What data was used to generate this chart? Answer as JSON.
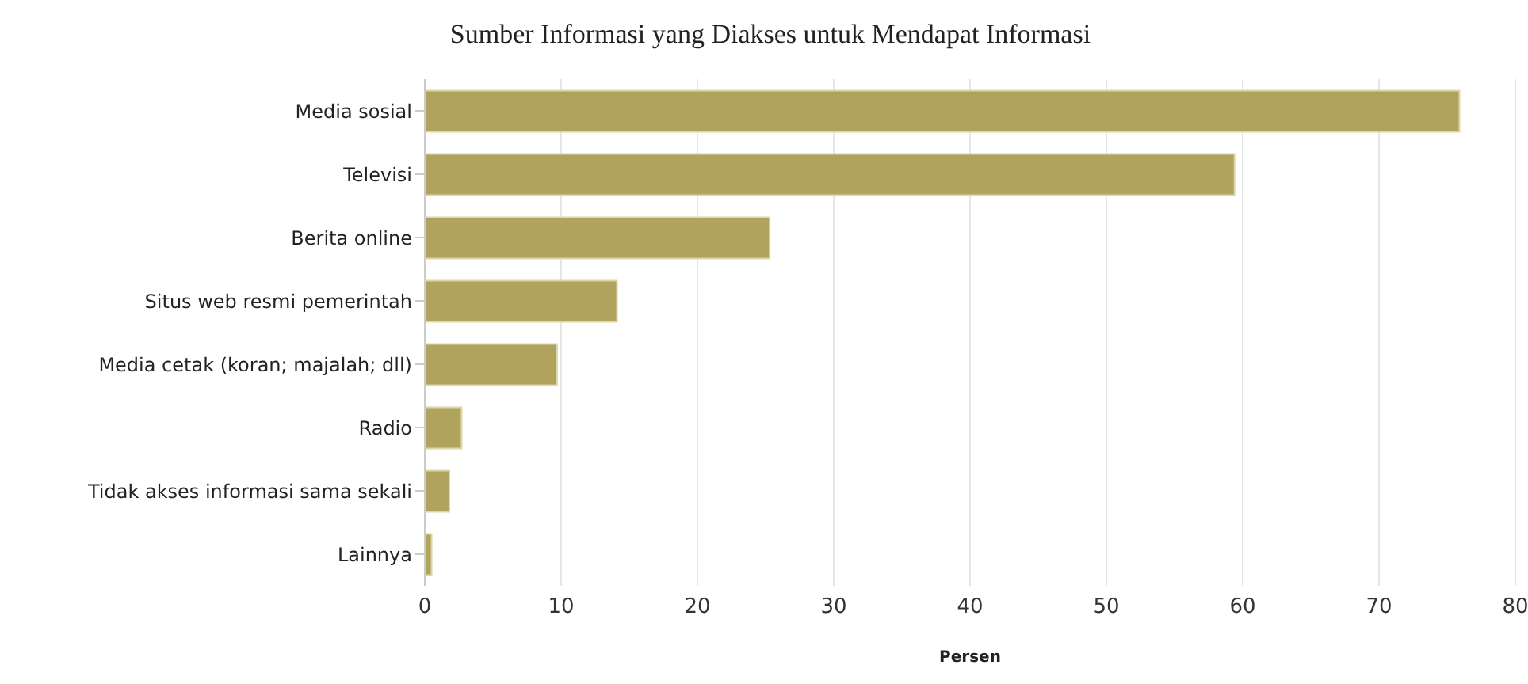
{
  "chart_data": {
    "type": "bar",
    "orientation": "horizontal",
    "title": "Sumber Informasi yang Diakses untuk Mendapat Informasi",
    "xlabel": "Persen",
    "categories": [
      "Media sosial",
      "Televisi",
      "Berita online",
      "Situs web resmi pemerintah",
      "Media cetak (koran; majalah; dll)",
      "Radio",
      "Tidak akses informasi sama sekali",
      "Lainnya"
    ],
    "values": [
      75.9,
      59.4,
      25.3,
      14.1,
      9.7,
      2.7,
      1.8,
      0.5
    ],
    "color": "#b0a35e",
    "xlim": [
      0,
      80
    ],
    "xticks": [
      0,
      10,
      20,
      30,
      40,
      50,
      60,
      70,
      80
    ],
    "grid": "x",
    "legend": false
  }
}
